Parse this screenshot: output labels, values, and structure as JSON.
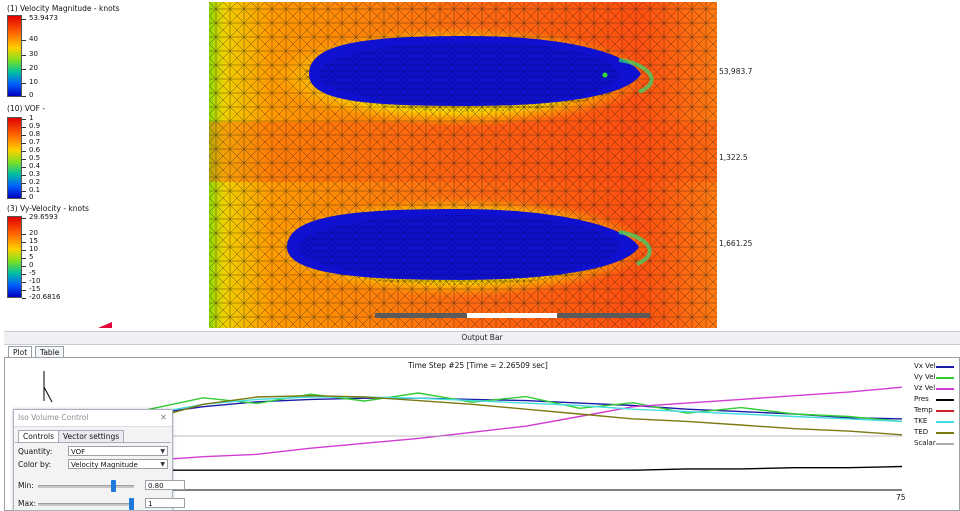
{
  "legends": [
    {
      "title": "(1) Velocity Magnitude - knots",
      "max_label": "53.9473",
      "ticks": [
        "40",
        "30",
        "20",
        "10",
        "0"
      ]
    },
    {
      "title": "(10) VOF -",
      "max_label": "1",
      "ticks": [
        "0.9",
        "0.8",
        "0.7",
        "0.6",
        "0.5",
        "0.4",
        "0.3",
        "0.2",
        "0.1",
        "0"
      ]
    },
    {
      "title": "(3) Vy-Velocity - knots",
      "max_label": "29.6593",
      "ticks": [
        "20",
        "15",
        "10",
        "5",
        "0",
        "-5",
        "-10",
        "-15",
        "-20.6816"
      ]
    }
  ],
  "viewport": {
    "axis_labels": [
      "53,983.7",
      "1,322.5",
      "1,661.25"
    ]
  },
  "output_bar": {
    "title": "Output Bar",
    "tabs": [
      "Plot",
      "Table"
    ],
    "plot_title": "Time Step #25 [Time = 2.26509 sec]",
    "x_tick_end": "75",
    "legend": [
      {
        "name": "Vx Vel",
        "color": "#1a1aa8"
      },
      {
        "name": "Vy Vel",
        "color": "#33cc33"
      },
      {
        "name": "Vz Vel",
        "color": "#d23cd2"
      },
      {
        "name": "Pres",
        "color": "#000000"
      },
      {
        "name": "Temp",
        "color": "#cc2222"
      },
      {
        "name": "TKE",
        "color": "#44dddd"
      },
      {
        "name": "TED",
        "color": "#7a7a10"
      },
      {
        "name": "Scalar",
        "color": "#aaaaaa"
      }
    ]
  },
  "chart_data": {
    "type": "line",
    "title": "Time Step #25 [Time = 2.26509 sec]",
    "x_range": [
      0,
      75
    ],
    "series": [
      {
        "name": "Vx Vel",
        "values": [
          0.55,
          0.62,
          0.68,
          0.74,
          0.78,
          0.8,
          0.81,
          0.81,
          0.8,
          0.79,
          0.77,
          0.75,
          0.72,
          0.7,
          0.68,
          0.65,
          0.64
        ]
      },
      {
        "name": "Vy Vel",
        "values": [
          0.4,
          0.58,
          0.72,
          0.78,
          0.8,
          0.81,
          0.82,
          0.82,
          0.81,
          0.79,
          0.76,
          0.74,
          0.72,
          0.7,
          0.68,
          0.66,
          0.62
        ]
      },
      {
        "name": "Vz Vel",
        "values": [
          0.25,
          0.28,
          0.3,
          0.33,
          0.35,
          0.4,
          0.44,
          0.48,
          0.53,
          0.58,
          0.66,
          0.74,
          0.77,
          0.8,
          0.83,
          0.86,
          0.9
        ]
      },
      {
        "name": "Pres",
        "values": [
          0.22,
          0.22,
          0.22,
          0.22,
          0.22,
          0.22,
          0.22,
          0.22,
          0.22,
          0.22,
          0.22,
          0.22,
          0.23,
          0.23,
          0.24,
          0.24,
          0.25
        ]
      },
      {
        "name": "TKE",
        "values": [
          0.35,
          0.52,
          0.68,
          0.76,
          0.8,
          0.82,
          0.82,
          0.81,
          0.79,
          0.77,
          0.75,
          0.72,
          0.7,
          0.68,
          0.66,
          0.64,
          0.62
        ]
      },
      {
        "name": "TED",
        "values": [
          0.3,
          0.48,
          0.64,
          0.76,
          0.82,
          0.83,
          0.82,
          0.79,
          0.76,
          0.72,
          0.68,
          0.64,
          0.62,
          0.59,
          0.56,
          0.54,
          0.51
        ]
      },
      {
        "name": "Scalar",
        "values": [
          0.5,
          0.5,
          0.5,
          0.5,
          0.5,
          0.5,
          0.5,
          0.5,
          0.5,
          0.5,
          0.5,
          0.5,
          0.5,
          0.5,
          0.5,
          0.5,
          0.5
        ]
      }
    ]
  },
  "iso_dialog": {
    "title": "Iso Volume Control",
    "tabs": [
      "Controls",
      "Vector settings"
    ],
    "quantity_label": "Quantity:",
    "quantity_value": "VOF",
    "color_label": "Color by:",
    "color_value": "Velocity Magnitude",
    "min_label": "Min:",
    "min_value": "0.80",
    "min_fraction": 0.8,
    "max_label": "Max:",
    "max_value": "1",
    "max_fraction": 1.0
  }
}
